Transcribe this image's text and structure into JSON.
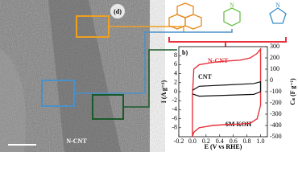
{
  "image_labels": {
    "panel": "(d)",
    "sample": "N-CNT"
  },
  "chart_data": {
    "type": "line",
    "panel": "b)",
    "annotation": "6M KOH",
    "xlabel": "E (V vs RHE)",
    "ylabel": "I (A g⁻¹)",
    "y2label": "Cₛ (F g⁻¹)",
    "xlim": [
      -0.2,
      1.1
    ],
    "xticks": [
      -0.2,
      {
        "value": 0,
        "label": "0.0"
      },
      0.2,
      0.4,
      0.6,
      0.8,
      {
        "value": 1,
        "label": "1.0"
      }
    ],
    "ylim": [
      -10,
      10
    ],
    "yticks": [
      -8,
      -6,
      -4,
      -2,
      0,
      2,
      4,
      6,
      8
    ],
    "y2lim": [
      -500,
      300
    ],
    "y2ticks": [
      -500,
      -400,
      -300,
      -200,
      -100,
      0,
      100,
      200,
      300
    ],
    "series": [
      {
        "name": "N-CNT",
        "color": "#e8323c",
        "x": [
          0.0,
          0.02,
          0.1,
          0.3,
          0.5,
          0.7,
          0.85,
          0.95,
          1.0,
          1.0,
          0.95,
          0.85,
          0.7,
          0.5,
          0.3,
          0.1,
          0.02,
          0.0,
          0.0
        ],
        "values": [
          -1,
          5,
          6,
          6.5,
          6.8,
          7,
          7.5,
          8.5,
          9.5,
          -3,
          -6,
          -7,
          -7.2,
          -7.3,
          -7.5,
          -8,
          -9,
          -10,
          -1
        ]
      },
      {
        "name": "CNT",
        "color": "#111111",
        "x": [
          0.0,
          0.1,
          0.5,
          0.9,
          1.0,
          1.0,
          0.9,
          0.5,
          0.1,
          0.0
        ],
        "values": [
          0.3,
          1.2,
          1.5,
          1.8,
          2.2,
          0,
          -0.6,
          -0.8,
          -1,
          -0.5
        ]
      }
    ]
  }
}
